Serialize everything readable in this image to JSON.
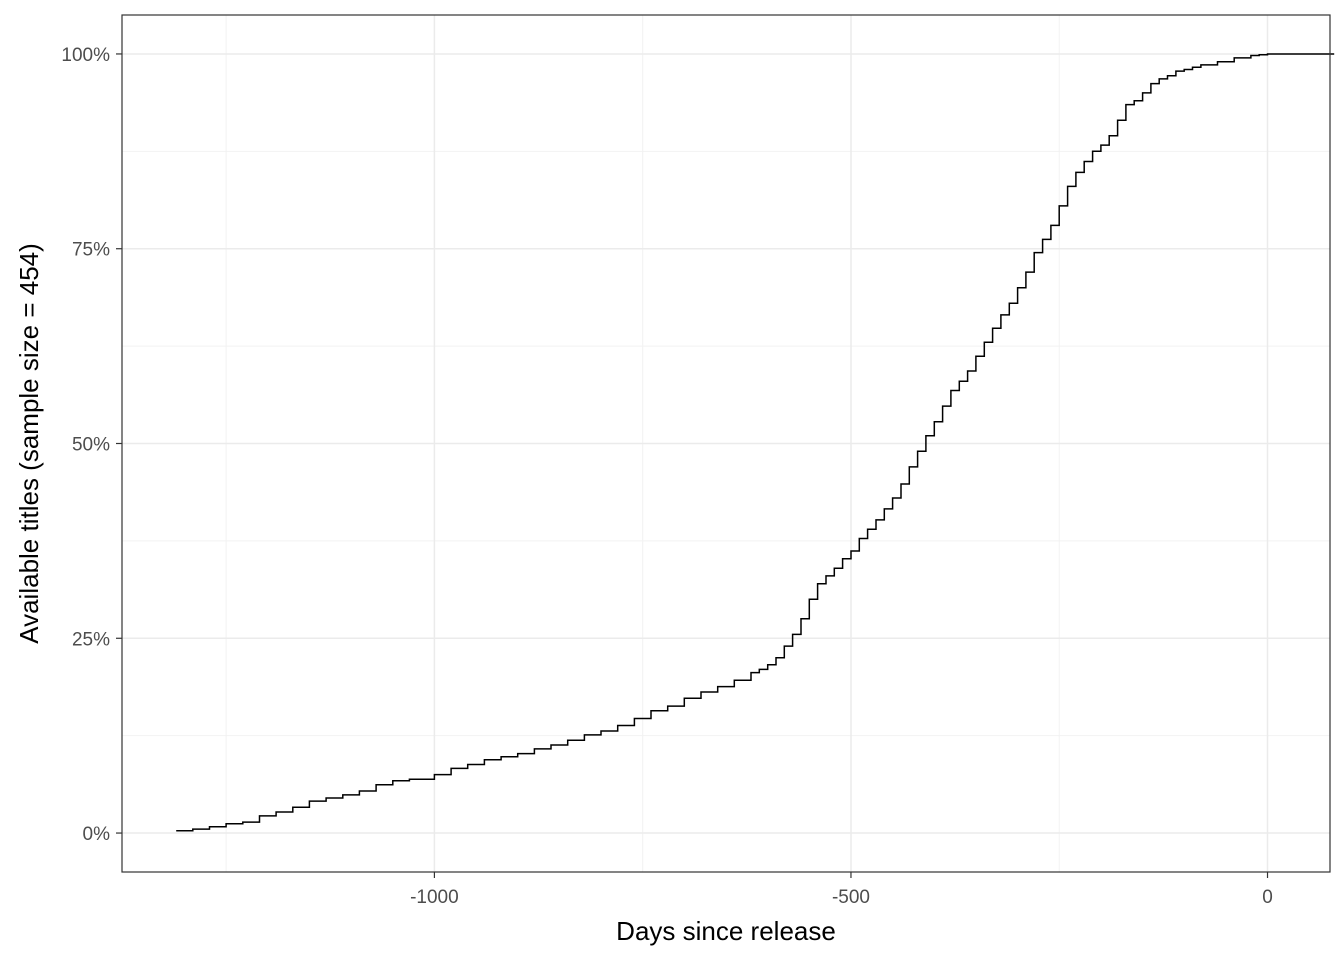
{
  "chart_data": {
    "type": "line",
    "title": "",
    "xlabel": "Days since release",
    "ylabel": "Available titles (sample size = 454)",
    "xlim": [
      -1375,
      75
    ],
    "ylim": [
      -0.05,
      1.05
    ],
    "x_ticks": [
      -1000,
      -500,
      0
    ],
    "x_tick_labels": [
      "-1000",
      "-500",
      "0"
    ],
    "x_minor_ticks": [
      -1250,
      -750,
      -250
    ],
    "y_ticks": [
      0,
      0.25,
      0.5,
      0.75,
      1.0
    ],
    "y_tick_labels": [
      "0%",
      "25%",
      "50%",
      "75%",
      "100%"
    ],
    "y_minor_ticks": [
      0.125,
      0.375,
      0.625,
      0.875
    ],
    "grid": true,
    "line_color": "#000000",
    "series": [
      {
        "name": "",
        "step": true,
        "x": [
          -1310,
          -1290,
          -1270,
          -1250,
          -1230,
          -1210,
          -1190,
          -1170,
          -1150,
          -1130,
          -1110,
          -1090,
          -1070,
          -1050,
          -1030,
          -1000,
          -980,
          -960,
          -940,
          -920,
          -900,
          -880,
          -860,
          -840,
          -820,
          -800,
          -780,
          -760,
          -740,
          -720,
          -700,
          -680,
          -660,
          -640,
          -620,
          -610,
          -600,
          -590,
          -580,
          -570,
          -560,
          -550,
          -540,
          -530,
          -520,
          -510,
          -500,
          -490,
          -480,
          -470,
          -460,
          -450,
          -440,
          -430,
          -420,
          -410,
          -400,
          -390,
          -380,
          -370,
          -360,
          -350,
          -340,
          -330,
          -320,
          -310,
          -300,
          -290,
          -280,
          -270,
          -260,
          -250,
          -240,
          -230,
          -220,
          -210,
          -200,
          -190,
          -180,
          -170,
          -160,
          -150,
          -140,
          -130,
          -120,
          -110,
          -100,
          -90,
          -80,
          -60,
          -40,
          -20,
          -10,
          0,
          20,
          40,
          60,
          80
        ],
        "y": [
          0.003,
          0.005,
          0.008,
          0.012,
          0.014,
          0.022,
          0.027,
          0.033,
          0.041,
          0.045,
          0.049,
          0.054,
          0.062,
          0.067,
          0.069,
          0.075,
          0.083,
          0.088,
          0.094,
          0.098,
          0.102,
          0.108,
          0.113,
          0.119,
          0.126,
          0.131,
          0.138,
          0.147,
          0.157,
          0.163,
          0.173,
          0.181,
          0.188,
          0.196,
          0.206,
          0.21,
          0.216,
          0.225,
          0.24,
          0.255,
          0.275,
          0.3,
          0.32,
          0.33,
          0.34,
          0.352,
          0.362,
          0.378,
          0.39,
          0.402,
          0.416,
          0.43,
          0.448,
          0.47,
          0.49,
          0.51,
          0.528,
          0.548,
          0.568,
          0.58,
          0.593,
          0.612,
          0.63,
          0.648,
          0.665,
          0.68,
          0.7,
          0.72,
          0.745,
          0.762,
          0.78,
          0.805,
          0.83,
          0.848,
          0.862,
          0.875,
          0.883,
          0.895,
          0.915,
          0.935,
          0.94,
          0.95,
          0.962,
          0.968,
          0.972,
          0.978,
          0.98,
          0.983,
          0.986,
          0.99,
          0.995,
          0.998,
          0.999,
          1.0,
          1.0,
          1.0,
          1.0,
          1.0
        ]
      }
    ]
  }
}
